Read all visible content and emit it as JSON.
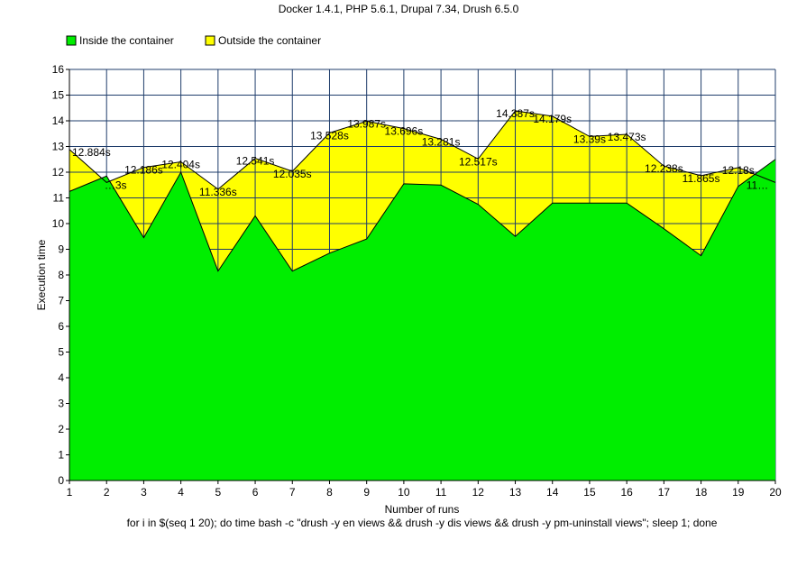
{
  "chart_data": {
    "type": "area",
    "title": "Docker 1.4.1, PHP 5.6.1, Drupal 7.34, Drush 6.5.0",
    "xlabel": "Number of runs",
    "ylabel": "Execution time",
    "subtitle": "for i in $(seq 1 20); do time bash -c \"drush -y en views && drush -y dis views && drush -y pm-uninstall views\"; sleep 1; done",
    "x": [
      1,
      2,
      3,
      4,
      5,
      6,
      7,
      8,
      9,
      10,
      11,
      12,
      13,
      14,
      15,
      16,
      17,
      18,
      19,
      20
    ],
    "xlim": [
      1,
      20
    ],
    "ylim": [
      0,
      16
    ],
    "yticks": [
      0,
      1,
      2,
      3,
      4,
      5,
      6,
      7,
      8,
      9,
      10,
      11,
      12,
      13,
      14,
      15,
      16
    ],
    "grid": true,
    "legend": "top-left",
    "series": [
      {
        "name": "Inside the container",
        "color": "#00ee00",
        "values": [
          11.25,
          11.85,
          9.45,
          12.0,
          8.15,
          10.3,
          8.15,
          8.85,
          9.4,
          11.55,
          11.5,
          10.75,
          9.5,
          10.8,
          10.8,
          10.8,
          9.8,
          8.75,
          11.45,
          12.5
        ]
      },
      {
        "name": "Outside the container",
        "color": "#ffff00",
        "values": [
          12.884,
          11.6,
          12.186,
          12.404,
          11.336,
          12.541,
          12.035,
          13.528,
          13.987,
          13.696,
          13.281,
          12.517,
          14.387,
          14.179,
          13.39,
          13.473,
          12.238,
          11.865,
          12.18,
          11.6
        ],
        "labels": [
          "12.884s",
          "…3s",
          "12.186s",
          "12.404s",
          "11.336s",
          "12.541s",
          "12.035s",
          "13.528s",
          "13.987s",
          "13.696s",
          "13.281s",
          "12.517s",
          "14.387s",
          "14.179s",
          "13.39s",
          "13.473s",
          "12.238s",
          "11.865s",
          "12.18s",
          "11…"
        ]
      }
    ],
    "colors": {
      "grid": "#1f3d6b",
      "outline": "#000000"
    }
  }
}
